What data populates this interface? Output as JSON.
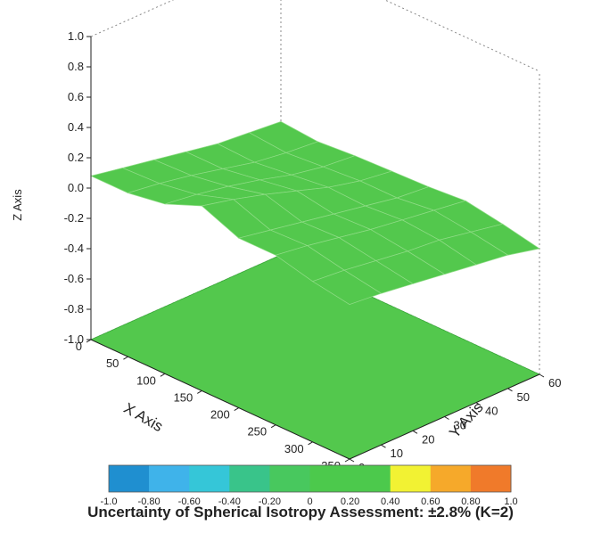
{
  "chart_data": {
    "type": "surface-3d",
    "xlabel": "X Axis",
    "ylabel": "Y Axis",
    "zlabel": "Z Axis",
    "x_ticks": [
      "0",
      "50",
      "100",
      "150",
      "200",
      "250",
      "300",
      "350"
    ],
    "y_ticks": [
      "0",
      "10",
      "20",
      "30",
      "40",
      "50",
      "60"
    ],
    "z_ticks": [
      "-1.0",
      "-0.8",
      "-0.6",
      "-0.4",
      "-0.2",
      "0.0",
      "0.2",
      "0.4",
      "0.6",
      "0.8",
      "1.0"
    ],
    "xlim": [
      0,
      350
    ],
    "ylim": [
      0,
      60
    ],
    "zlim": [
      -1.0,
      1.0
    ],
    "x_grid": [
      0,
      50,
      100,
      150,
      200,
      250,
      300,
      350
    ],
    "y_grid": [
      0,
      10,
      20,
      30,
      40,
      50,
      60
    ],
    "z_surface": [
      [
        0.08,
        0.04,
        0.0,
        -0.04,
        -0.08,
        -0.1,
        -0.12
      ],
      [
        0.08,
        0.05,
        0.01,
        -0.04,
        -0.09,
        -0.12,
        -0.14
      ],
      [
        0.12,
        0.09,
        0.05,
        0.0,
        -0.06,
        -0.1,
        -0.12
      ],
      [
        0.22,
        0.17,
        0.11,
        0.04,
        -0.03,
        -0.08,
        -0.11
      ],
      [
        0.12,
        0.08,
        0.04,
        0.0,
        -0.04,
        -0.08,
        -0.1
      ],
      [
        0.12,
        0.09,
        0.05,
        0.01,
        -0.02,
        -0.05,
        -0.08
      ],
      [
        0.06,
        0.04,
        0.01,
        -0.02,
        -0.04,
        -0.08,
        -0.12
      ],
      [
        0.02,
        0.0,
        -0.03,
        -0.06,
        -0.09,
        -0.12,
        -0.17
      ]
    ],
    "floor_z": -1.0,
    "colorbar": {
      "labels": [
        "-1.0",
        "-0.80",
        "-0.60",
        "-0.40",
        "-0.20",
        "0",
        "0.20",
        "0.40",
        "0.60",
        "0.80",
        "1.0"
      ],
      "colors": [
        "#1f8fd0",
        "#3fb3ea",
        "#35c6d8",
        "#39c48a",
        "#48c85e",
        "#4cc94c",
        "#4cc94c",
        "#f2f233",
        "#f6a92a",
        "#f07a2a",
        "#ee4a3a"
      ]
    },
    "surface_color": "#53c84d",
    "caption": "Uncertainty of Spherical Isotropy Assessment: ±2.8% (K=2)"
  }
}
